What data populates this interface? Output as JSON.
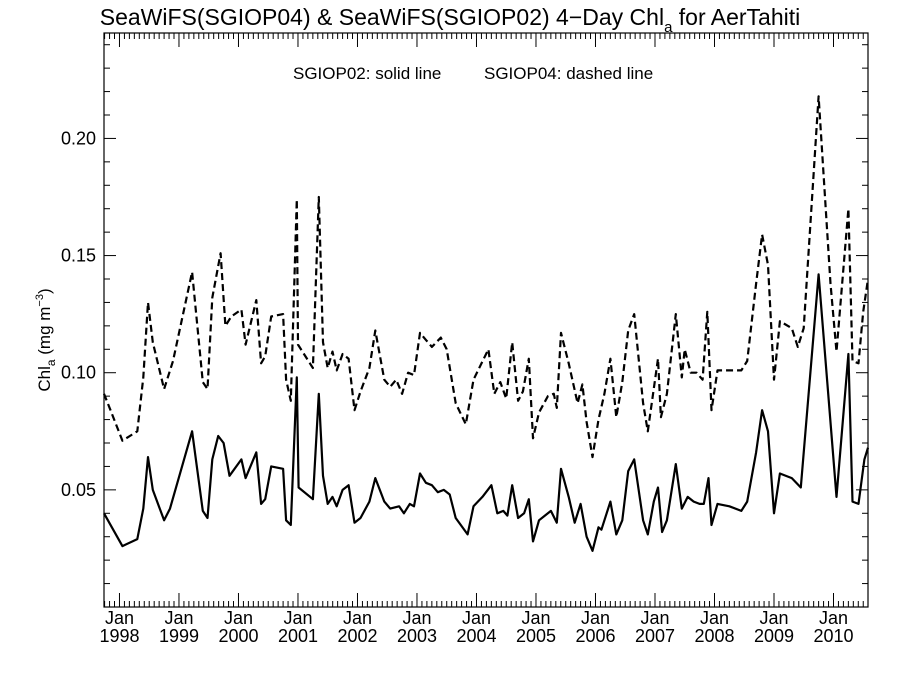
{
  "chart_data": {
    "type": "line",
    "title": {
      "main": "SeaWiFS(SGIOP04) & SeaWiFS(SGIOP02) 4−Day Chl",
      "sub": "a",
      "suffix": " for AerTahiti"
    },
    "annotation": {
      "solid": "SGIOP02: solid line",
      "dashed": "SGIOP04: dashed line"
    },
    "ylabel": {
      "main": "Chl",
      "sub": "a",
      "unit_pre": " (mg m",
      "unit_sup": "−3",
      "unit_post": ")"
    },
    "xlim": [
      1997.74,
      2010.58
    ],
    "ylim": [
      0.0,
      0.245
    ],
    "yticks": [
      0.05,
      0.1,
      0.15,
      0.2
    ],
    "ytick_labels": [
      "0.05",
      "0.10",
      "0.15",
      "0.20"
    ],
    "xticks": [
      {
        "x": 1998.0,
        "month": "Jan",
        "year": "1998"
      },
      {
        "x": 1999.0,
        "month": "Jan",
        "year": "1999"
      },
      {
        "x": 2000.0,
        "month": "Jan",
        "year": "2000"
      },
      {
        "x": 2001.0,
        "month": "Jan",
        "year": "2001"
      },
      {
        "x": 2002.0,
        "month": "Jan",
        "year": "2002"
      },
      {
        "x": 2003.0,
        "month": "Jan",
        "year": "2003"
      },
      {
        "x": 2004.0,
        "month": "Jan",
        "year": "2004"
      },
      {
        "x": 2005.0,
        "month": "Jan",
        "year": "2005"
      },
      {
        "x": 2006.0,
        "month": "Jan",
        "year": "2006"
      },
      {
        "x": 2007.0,
        "month": "Jan",
        "year": "2007"
      },
      {
        "x": 2008.0,
        "month": "Jan",
        "year": "2008"
      },
      {
        "x": 2009.0,
        "month": "Jan",
        "year": "2009"
      },
      {
        "x": 2010.0,
        "month": "Jan",
        "year": "2010"
      }
    ],
    "grid": false,
    "series": [
      {
        "style": "solid",
        "points": [
          [
            1997.74,
            0.04
          ],
          [
            1998.05,
            0.026
          ],
          [
            1998.3,
            0.029
          ],
          [
            1998.4,
            0.042
          ],
          [
            1998.48,
            0.064
          ],
          [
            1998.56,
            0.05
          ],
          [
            1998.75,
            0.037
          ],
          [
            1998.85,
            0.042
          ],
          [
            1999.22,
            0.075
          ],
          [
            1999.4,
            0.041
          ],
          [
            1999.48,
            0.038
          ],
          [
            1999.56,
            0.063
          ],
          [
            1999.66,
            0.073
          ],
          [
            1999.75,
            0.07
          ],
          [
            1999.85,
            0.056
          ],
          [
            2000.05,
            0.063
          ],
          [
            2000.12,
            0.055
          ],
          [
            2000.3,
            0.066
          ],
          [
            2000.38,
            0.044
          ],
          [
            2000.45,
            0.046
          ],
          [
            2000.55,
            0.06
          ],
          [
            2000.75,
            0.059
          ],
          [
            2000.8,
            0.037
          ],
          [
            2000.88,
            0.035
          ],
          [
            2000.98,
            0.098
          ],
          [
            2001.01,
            0.051
          ],
          [
            2001.25,
            0.046
          ],
          [
            2001.35,
            0.091
          ],
          [
            2001.42,
            0.056
          ],
          [
            2001.5,
            0.044
          ],
          [
            2001.58,
            0.047
          ],
          [
            2001.65,
            0.043
          ],
          [
            2001.75,
            0.05
          ],
          [
            2001.85,
            0.052
          ],
          [
            2001.95,
            0.036
          ],
          [
            2002.05,
            0.038
          ],
          [
            2002.2,
            0.045
          ],
          [
            2002.3,
            0.055
          ],
          [
            2002.45,
            0.045
          ],
          [
            2002.55,
            0.042
          ],
          [
            2002.7,
            0.043
          ],
          [
            2002.78,
            0.04
          ],
          [
            2002.88,
            0.044
          ],
          [
            2002.95,
            0.043
          ],
          [
            2003.05,
            0.057
          ],
          [
            2003.15,
            0.053
          ],
          [
            2003.25,
            0.052
          ],
          [
            2003.35,
            0.049
          ],
          [
            2003.45,
            0.05
          ],
          [
            2003.55,
            0.048
          ],
          [
            2003.65,
            0.038
          ],
          [
            2003.85,
            0.031
          ],
          [
            2003.95,
            0.043
          ],
          [
            2004.1,
            0.047
          ],
          [
            2004.25,
            0.052
          ],
          [
            2004.35,
            0.04
          ],
          [
            2004.45,
            0.041
          ],
          [
            2004.52,
            0.039
          ],
          [
            2004.6,
            0.052
          ],
          [
            2004.7,
            0.038
          ],
          [
            2004.8,
            0.04
          ],
          [
            2004.88,
            0.046
          ],
          [
            2004.95,
            0.028
          ],
          [
            2005.05,
            0.037
          ],
          [
            2005.15,
            0.039
          ],
          [
            2005.25,
            0.041
          ],
          [
            2005.35,
            0.036
          ],
          [
            2005.42,
            0.059
          ],
          [
            2005.55,
            0.047
          ],
          [
            2005.65,
            0.036
          ],
          [
            2005.75,
            0.044
          ],
          [
            2005.85,
            0.03
          ],
          [
            2005.95,
            0.024
          ],
          [
            2006.05,
            0.034
          ],
          [
            2006.1,
            0.033
          ],
          [
            2006.25,
            0.045
          ],
          [
            2006.35,
            0.031
          ],
          [
            2006.45,
            0.037
          ],
          [
            2006.55,
            0.058
          ],
          [
            2006.65,
            0.063
          ],
          [
            2006.8,
            0.037
          ],
          [
            2006.88,
            0.031
          ],
          [
            2006.98,
            0.045
          ],
          [
            2007.05,
            0.051
          ],
          [
            2007.12,
            0.032
          ],
          [
            2007.2,
            0.037
          ],
          [
            2007.35,
            0.061
          ],
          [
            2007.45,
            0.042
          ],
          [
            2007.55,
            0.047
          ],
          [
            2007.65,
            0.045
          ],
          [
            2007.75,
            0.044
          ],
          [
            2007.82,
            0.044
          ],
          [
            2007.9,
            0.055
          ],
          [
            2007.95,
            0.035
          ],
          [
            2008.05,
            0.044
          ],
          [
            2008.25,
            0.043
          ],
          [
            2008.45,
            0.041
          ],
          [
            2008.55,
            0.045
          ],
          [
            2008.7,
            0.066
          ],
          [
            2008.8,
            0.084
          ],
          [
            2008.9,
            0.075
          ],
          [
            2009.0,
            0.04
          ],
          [
            2009.1,
            0.057
          ],
          [
            2009.3,
            0.055
          ],
          [
            2009.45,
            0.051
          ],
          [
            2009.75,
            0.142
          ],
          [
            2010.05,
            0.047
          ],
          [
            2010.25,
            0.108
          ],
          [
            2010.32,
            0.045
          ],
          [
            2010.42,
            0.044
          ],
          [
            2010.52,
            0.063
          ],
          [
            2010.58,
            0.068
          ]
        ]
      },
      {
        "style": "dashed",
        "points": [
          [
            1997.74,
            0.091
          ],
          [
            1997.85,
            0.084
          ],
          [
            1998.05,
            0.071
          ],
          [
            1998.3,
            0.075
          ],
          [
            1998.4,
            0.098
          ],
          [
            1998.48,
            0.13
          ],
          [
            1998.56,
            0.113
          ],
          [
            1998.75,
            0.093
          ],
          [
            1998.9,
            0.105
          ],
          [
            1999.22,
            0.143
          ],
          [
            1999.4,
            0.096
          ],
          [
            1999.48,
            0.093
          ],
          [
            1999.56,
            0.132
          ],
          [
            1999.7,
            0.151
          ],
          [
            1999.78,
            0.12
          ],
          [
            1999.88,
            0.124
          ],
          [
            2000.05,
            0.127
          ],
          [
            2000.12,
            0.112
          ],
          [
            2000.3,
            0.131
          ],
          [
            2000.38,
            0.104
          ],
          [
            2000.45,
            0.107
          ],
          [
            2000.55,
            0.124
          ],
          [
            2000.75,
            0.125
          ],
          [
            2000.8,
            0.097
          ],
          [
            2000.88,
            0.088
          ],
          [
            2000.98,
            0.174
          ],
          [
            2001.0,
            0.112
          ],
          [
            2001.2,
            0.104
          ],
          [
            2001.25,
            0.102
          ],
          [
            2001.35,
            0.175
          ],
          [
            2001.42,
            0.113
          ],
          [
            2001.5,
            0.102
          ],
          [
            2001.58,
            0.109
          ],
          [
            2001.65,
            0.101
          ],
          [
            2001.75,
            0.108
          ],
          [
            2001.85,
            0.106
          ],
          [
            2001.95,
            0.084
          ],
          [
            2002.05,
            0.092
          ],
          [
            2002.2,
            0.102
          ],
          [
            2002.3,
            0.118
          ],
          [
            2002.45,
            0.097
          ],
          [
            2002.55,
            0.094
          ],
          [
            2002.65,
            0.097
          ],
          [
            2002.75,
            0.091
          ],
          [
            2002.85,
            0.1
          ],
          [
            2002.95,
            0.099
          ],
          [
            2003.05,
            0.117
          ],
          [
            2003.15,
            0.114
          ],
          [
            2003.25,
            0.111
          ],
          [
            2003.4,
            0.115
          ],
          [
            2003.5,
            0.11
          ],
          [
            2003.65,
            0.087
          ],
          [
            2003.82,
            0.078
          ],
          [
            2003.95,
            0.097
          ],
          [
            2004.2,
            0.11
          ],
          [
            2004.3,
            0.091
          ],
          [
            2004.4,
            0.096
          ],
          [
            2004.5,
            0.089
          ],
          [
            2004.6,
            0.113
          ],
          [
            2004.7,
            0.088
          ],
          [
            2004.78,
            0.092
          ],
          [
            2004.88,
            0.106
          ],
          [
            2004.95,
            0.072
          ],
          [
            2005.05,
            0.083
          ],
          [
            2005.2,
            0.09
          ],
          [
            2005.3,
            0.091
          ],
          [
            2005.35,
            0.085
          ],
          [
            2005.42,
            0.117
          ],
          [
            2005.55,
            0.104
          ],
          [
            2005.7,
            0.087
          ],
          [
            2005.78,
            0.095
          ],
          [
            2005.85,
            0.079
          ],
          [
            2005.95,
            0.064
          ],
          [
            2006.05,
            0.08
          ],
          [
            2006.15,
            0.091
          ],
          [
            2006.25,
            0.106
          ],
          [
            2006.35,
            0.081
          ],
          [
            2006.45,
            0.096
          ],
          [
            2006.55,
            0.118
          ],
          [
            2006.65,
            0.125
          ],
          [
            2006.8,
            0.087
          ],
          [
            2006.88,
            0.075
          ],
          [
            2007.05,
            0.106
          ],
          [
            2007.1,
            0.081
          ],
          [
            2007.2,
            0.091
          ],
          [
            2007.35,
            0.125
          ],
          [
            2007.45,
            0.098
          ],
          [
            2007.5,
            0.11
          ],
          [
            2007.6,
            0.1
          ],
          [
            2007.7,
            0.1
          ],
          [
            2007.8,
            0.097
          ],
          [
            2007.88,
            0.126
          ],
          [
            2007.95,
            0.084
          ],
          [
            2008.05,
            0.101
          ],
          [
            2008.25,
            0.101
          ],
          [
            2008.45,
            0.101
          ],
          [
            2008.55,
            0.105
          ],
          [
            2008.7,
            0.138
          ],
          [
            2008.8,
            0.159
          ],
          [
            2008.9,
            0.146
          ],
          [
            2009.0,
            0.097
          ],
          [
            2009.1,
            0.122
          ],
          [
            2009.3,
            0.119
          ],
          [
            2009.4,
            0.111
          ],
          [
            2009.5,
            0.119
          ],
          [
            2009.75,
            0.218
          ],
          [
            2009.95,
            0.138
          ],
          [
            2010.05,
            0.109
          ],
          [
            2010.25,
            0.17
          ],
          [
            2010.32,
            0.105
          ],
          [
            2010.42,
            0.104
          ],
          [
            2010.5,
            0.126
          ],
          [
            2010.58,
            0.14
          ]
        ]
      }
    ]
  }
}
